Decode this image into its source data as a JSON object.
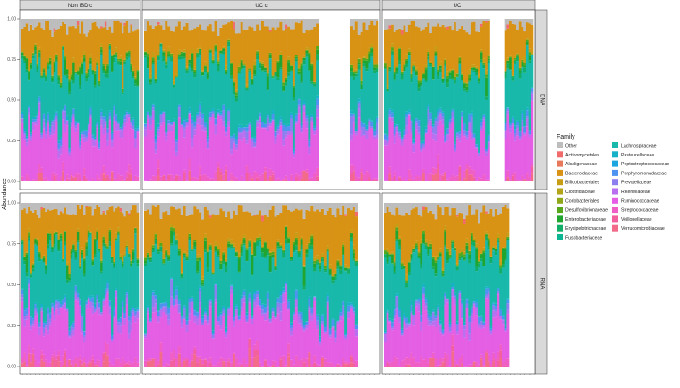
{
  "chart_data": {
    "type": "bar",
    "stacked": true,
    "ylabel": "Abundance",
    "xlabel": "",
    "ylim": [
      0,
      1
    ],
    "y_ticks": [
      "0.00",
      "0.25",
      "0.50",
      "0.75",
      "1.00"
    ],
    "grid": false,
    "legend_position": "right",
    "column_facets": [
      "Non IBD c",
      "UC c",
      "UC i"
    ],
    "row_facets": [
      "DNA",
      "RNA"
    ],
    "legend": {
      "title": "Family",
      "entries": [
        {
          "name": "Other",
          "color": "#bdbdbd"
        },
        {
          "name": "Actinomycetales",
          "color": "#f26b6b"
        },
        {
          "name": "Alcaligenaceae",
          "color": "#e8785a"
        },
        {
          "name": "Bacteroidaceae",
          "color": "#d89214"
        },
        {
          "name": "Bifidobacteriales",
          "color": "#c89d16"
        },
        {
          "name": "Clostridiaceae",
          "color": "#b3a41a"
        },
        {
          "name": "Coriobacteriales",
          "color": "#8ea819"
        },
        {
          "name": "Desulfovibrionaceae",
          "color": "#55a81c"
        },
        {
          "name": "Enterobacteriaceae",
          "color": "#1fa530"
        },
        {
          "name": "Erysipelotrichaceae",
          "color": "#12ad66"
        },
        {
          "name": "Fusobacteriaceae",
          "color": "#0cb692"
        },
        {
          "name": "Lachnospiraceae",
          "color": "#18b8aa"
        },
        {
          "name": "Pasteurellaceae",
          "color": "#17b2c8"
        },
        {
          "name": "Peptostreptococcaceae",
          "color": "#1ba6df"
        },
        {
          "name": "Porphyromonadaceae",
          "color": "#4e93ef"
        },
        {
          "name": "Prevotellaceae",
          "color": "#8c7ff0"
        },
        {
          "name": "Rikenellaceae",
          "color": "#b86ff0"
        },
        {
          "name": "Ruminococcaceae",
          "color": "#e45fe4"
        },
        {
          "name": "Streptococcaceae",
          "color": "#ef5fc5"
        },
        {
          "name": "Veillonellaceae",
          "color": "#f2609e"
        },
        {
          "name": "Verrucomicrobiaceae",
          "color": "#f26c8a"
        }
      ]
    },
    "facet_samples": {
      "DNA": {
        "Non IBD c": 55,
        "UC c": 90,
        "UC i": 62
      },
      "RNA": {
        "Non IBD c": 55,
        "UC c": 90,
        "UC i": 62
      }
    },
    "typical_profile_note_values": {
      "Ruminococcaceae": 0.3,
      "Lachnospiraceae": 0.3,
      "Bacteroidaceae": 0.22,
      "Other": 0.05
    }
  }
}
